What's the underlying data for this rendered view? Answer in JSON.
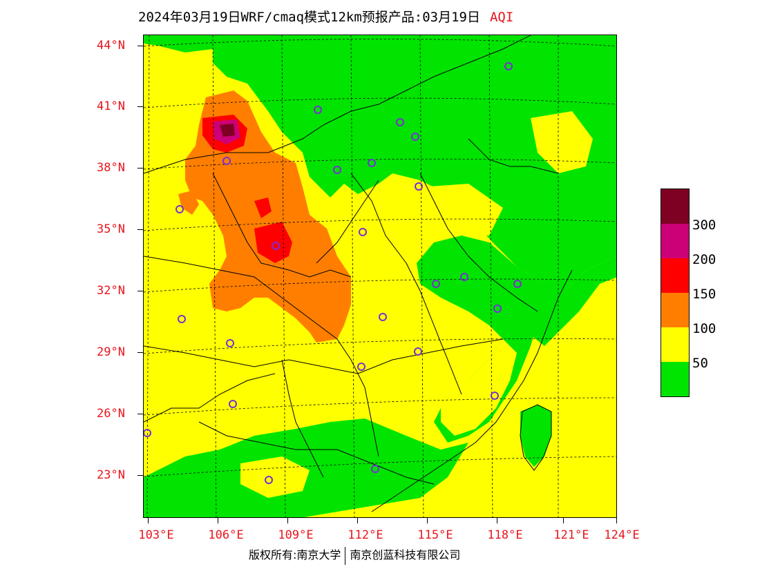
{
  "title": {
    "main": "2024年03月19日WRF/cmaq模式12km预报产品:03月19日",
    "product": "AQI"
  },
  "map": {
    "lat_labels": [
      "44°N",
      "41°N",
      "38°N",
      "35°N",
      "32°N",
      "29°N",
      "26°N",
      "23°N"
    ],
    "lon_labels": [
      "103°E",
      "106°E",
      "109°E",
      "112°E",
      "115°E",
      "118°E",
      "121°E",
      "124°E"
    ],
    "colors": {
      "good": "#00e400",
      "moderate": "#ffff00",
      "usg": "#ff7e00",
      "unhealthy": "#ff0000",
      "very_unhealthy": "#cc0077",
      "hazardous": "#7e0023",
      "station": "#7a2ed6"
    }
  },
  "legend": {
    "labels": [
      "300",
      "200",
      "150",
      "100",
      "50"
    ],
    "colors": [
      "#7e0023",
      "#cc0077",
      "#ff0000",
      "#ff7e00",
      "#ffff00",
      "#00e400"
    ]
  },
  "footer": {
    "copyright": "版权所有:南京大学",
    "company": "南京创蓝科技有限公司"
  }
}
